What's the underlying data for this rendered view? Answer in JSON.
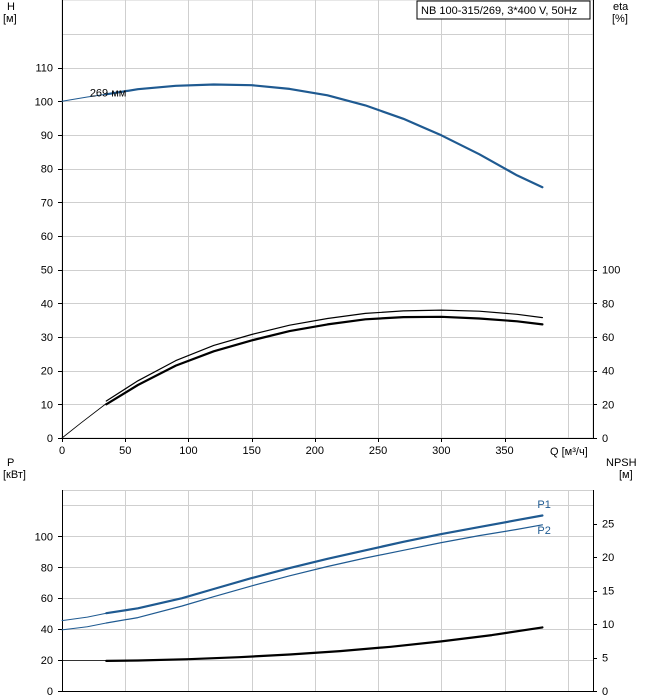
{
  "colors": {
    "blue": "#1f5a91",
    "black": "#000000",
    "grid": "#cfcfcf"
  },
  "chart_data": [
    {
      "type": "line",
      "title": "NB 100-315/269, 3*400 V, 50Hz",
      "xlabel": "Q [м³/ч]",
      "ylabel_main": "H",
      "ylabel_unit": "[м]",
      "y2label_main": "eta",
      "y2label_unit": "[%]",
      "xlim": [
        0,
        420
      ],
      "ylim": [
        0,
        120
      ],
      "y2lim": [
        0,
        240
      ],
      "xticks": [
        0,
        50,
        100,
        150,
        200,
        250,
        300,
        350
      ],
      "xtick_labels": [
        "0",
        "50",
        "100",
        "150",
        "200",
        "250",
        "300",
        "350"
      ],
      "yticks": [
        0,
        10,
        20,
        30,
        40,
        50,
        60,
        70,
        80,
        90,
        100,
        110
      ],
      "ytick_labels": [
        "0",
        "10",
        "20",
        "30",
        "40",
        "50",
        "60",
        "70",
        "80",
        "90",
        "100",
        "110"
      ],
      "y2ticks": [
        0,
        20,
        40,
        60,
        80,
        100
      ],
      "y2tick_labels": [
        "0",
        "20",
        "40",
        "60",
        "80",
        "100"
      ],
      "annotation": {
        "text": "269 мм",
        "x": 22,
        "y": 101.5
      },
      "series": [
        {
          "id": "H-ext",
          "axis": "y",
          "color": "#1f5a91",
          "width": 1,
          "x": [
            0,
            20,
            35
          ],
          "y": [
            100,
            101.3,
            102.1
          ]
        },
        {
          "id": "H",
          "axis": "y",
          "color": "#1f5a91",
          "width": 2.2,
          "x": [
            35,
            60,
            90,
            120,
            150,
            180,
            210,
            240,
            270,
            300,
            330,
            360,
            380
          ],
          "y": [
            102.1,
            103.6,
            104.6,
            105,
            104.8,
            103.7,
            101.8,
            98.8,
            94.8,
            89.9,
            84.3,
            78,
            74.5
          ]
        },
        {
          "id": "eta-thin-ext",
          "axis": "y2",
          "color": "#000000",
          "width": 0.8,
          "x": [
            0,
            15,
            35
          ],
          "y": [
            0,
            9,
            20.5
          ]
        },
        {
          "id": "eta-thin",
          "axis": "y2",
          "color": "#000000",
          "width": 1.2,
          "x": [
            35,
            60,
            90,
            120,
            150,
            180,
            210,
            240,
            270,
            300,
            330,
            360,
            380
          ],
          "y": [
            22,
            34,
            46,
            55,
            61.5,
            67,
            71,
            74,
            75.5,
            76,
            75.3,
            73.5,
            71.5
          ]
        },
        {
          "id": "eta-thick",
          "axis": "y2",
          "color": "#000000",
          "width": 2.2,
          "x": [
            35,
            60,
            90,
            120,
            150,
            180,
            210,
            240,
            270,
            300,
            330,
            360,
            380
          ],
          "y": [
            20,
            31.5,
            43,
            51.5,
            58,
            63.5,
            67.5,
            70.5,
            71.8,
            72,
            71,
            69.3,
            67.5
          ]
        }
      ]
    },
    {
      "type": "line",
      "ylabel_main": "P",
      "ylabel_unit": "[кВт]",
      "y2label_main": "NPSH",
      "y2label_unit": "[м]",
      "xlim": [
        0,
        420
      ],
      "ylim": [
        0,
        130
      ],
      "y2lim": [
        0,
        30
      ],
      "yticks": [
        0,
        20,
        40,
        60,
        80,
        100
      ],
      "ytick_labels": [
        "0",
        "20",
        "40",
        "60",
        "80",
        "100"
      ],
      "y2ticks": [
        0,
        5,
        10,
        15,
        20,
        25
      ],
      "y2tick_labels": [
        "0",
        "5",
        "10",
        "15",
        "20",
        "25"
      ],
      "series": [
        {
          "id": "P1-ext",
          "axis": "y",
          "color": "#1f5a91",
          "width": 1,
          "x": [
            0,
            20,
            35
          ],
          "y": [
            45.5,
            47.8,
            50.3
          ]
        },
        {
          "id": "P1",
          "name": "P1",
          "axis": "y",
          "color": "#1f5a91",
          "width": 2.2,
          "x": [
            35,
            60,
            95,
            120,
            150,
            180,
            210,
            240,
            270,
            300,
            330,
            360,
            380
          ],
          "y": [
            50.3,
            53.5,
            60,
            66,
            73,
            79.5,
            85.5,
            91,
            96.5,
            101.5,
            106,
            110.5,
            113.5
          ]
        },
        {
          "id": "P2-ext",
          "axis": "y",
          "color": "#1f5a91",
          "width": 1,
          "x": [
            0,
            20,
            35
          ],
          "y": [
            39.5,
            41.5,
            44
          ]
        },
        {
          "id": "P2",
          "name": "P2",
          "axis": "y",
          "color": "#1f5a91",
          "width": 1.2,
          "x": [
            35,
            60,
            95,
            120,
            150,
            180,
            210,
            240,
            270,
            300,
            330,
            360,
            380
          ],
          "y": [
            44,
            47.5,
            55,
            61,
            68,
            74.5,
            80.5,
            86,
            91,
            96,
            100.5,
            104.5,
            107.5
          ]
        },
        {
          "id": "NPSH-ext",
          "axis": "y2",
          "color": "#000000",
          "width": 0.8,
          "x": [
            0,
            35
          ],
          "y": [
            4.55,
            4.55
          ]
        },
        {
          "id": "NPSH",
          "axis": "y2",
          "color": "#000000",
          "width": 2.2,
          "x": [
            35,
            60,
            100,
            140,
            180,
            220,
            260,
            300,
            340,
            380
          ],
          "y": [
            4.5,
            4.55,
            4.75,
            5.05,
            5.45,
            5.95,
            6.6,
            7.4,
            8.35,
            9.5
          ]
        }
      ],
      "labels": [
        {
          "text": "P1",
          "x": 376,
          "y": 118.5
        },
        {
          "text": "P2",
          "x": 376,
          "y": 101.5
        }
      ]
    }
  ]
}
